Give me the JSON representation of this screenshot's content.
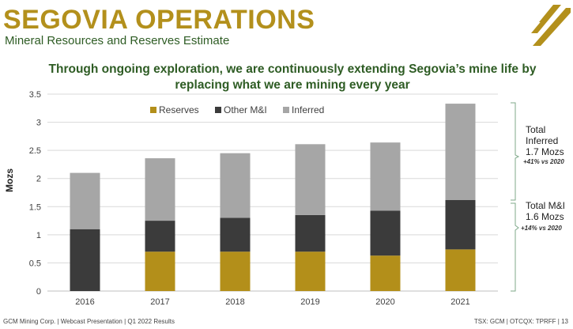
{
  "header": {
    "title": "SEGOVIA OPERATIONS",
    "subtitle": "Mineral Resources and Reserves Estimate",
    "headline": "Through ongoing exploration, we are continuously extending Segovia’s mine life by replacing what we are mining every year"
  },
  "colors": {
    "reserves": "#b38f1a",
    "other_mi": "#3b3b3b",
    "inferred": "#a6a6a6",
    "title_gold": "#b3901c",
    "accent_green": "#2e5c24"
  },
  "chart_data": {
    "type": "bar",
    "stacked": true,
    "categories": [
      "2016",
      "2017",
      "2018",
      "2019",
      "2020",
      "2021"
    ],
    "series": [
      {
        "name": "Reserves",
        "values": [
          0,
          0.7,
          0.7,
          0.7,
          0.63,
          0.74
        ]
      },
      {
        "name": "Other M&I",
        "values": [
          1.1,
          0.55,
          0.6,
          0.65,
          0.8,
          0.88
        ]
      },
      {
        "name": "Inferred",
        "values": [
          1.0,
          1.11,
          1.15,
          1.26,
          1.21,
          1.71
        ]
      }
    ],
    "ylabel": "Mozs",
    "ylim": [
      0,
      3.5
    ],
    "yticks": [
      "0",
      "0.5",
      "1",
      "1.5",
      "2",
      "2.5",
      "3",
      "3.5"
    ],
    "grid": true,
    "legend_position": "top"
  },
  "annotations": {
    "inferred": {
      "lines": [
        "Total",
        "Inferred",
        "1.7 Mozs"
      ],
      "pct": "+41% vs 2020"
    },
    "mi": {
      "lines": [
        "Total M&I",
        "1.6 Mozs"
      ],
      "pct": "+14% vs 2020"
    }
  },
  "footer": {
    "left": "GCM Mining Corp.  | Webcast Presentation  |  Q1 2022 Results",
    "right": "TSX: GCM  |  OTCQX: TPRFF  |  13"
  }
}
